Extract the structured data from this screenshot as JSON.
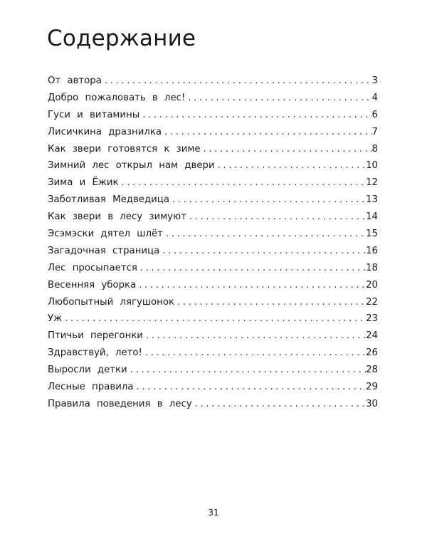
{
  "title": "Содержание",
  "entries": [
    {
      "label": "От автора",
      "page": "3"
    },
    {
      "label": "Добро пожаловать в лес!",
      "page": "4"
    },
    {
      "label": "Гуси и витамины",
      "page": "6"
    },
    {
      "label": "Лисичкина дразнилка",
      "page": "7"
    },
    {
      "label": "Как звери готовятся к зиме",
      "page": "8"
    },
    {
      "label": "Зимний лес открыл нам двери",
      "page": "10"
    },
    {
      "label": "Зима и Ёжик",
      "page": "12"
    },
    {
      "label": "Заботливая Медведица",
      "page": "13"
    },
    {
      "label": "Как звери в лесу зимуют",
      "page": "14"
    },
    {
      "label": "Эсэмэски дятел шлёт",
      "page": "15"
    },
    {
      "label": "Загадочная страница",
      "page": "16"
    },
    {
      "label": "Лес просыпается",
      "page": "18"
    },
    {
      "label": "Весенняя уборка",
      "page": "20"
    },
    {
      "label": "Любопытный лягушонок",
      "page": "22"
    },
    {
      "label": "Уж",
      "page": "23"
    },
    {
      "label": "Птичьи перегонки",
      "page": "24"
    },
    {
      "label": "Здравствуй, лето!",
      "page": "26"
    },
    {
      "label": "Выросли детки",
      "page": "28"
    },
    {
      "label": "Лесные правила",
      "page": "29"
    },
    {
      "label": "Правила поведения в лесу",
      "page": "30"
    }
  ],
  "page_number": "31"
}
